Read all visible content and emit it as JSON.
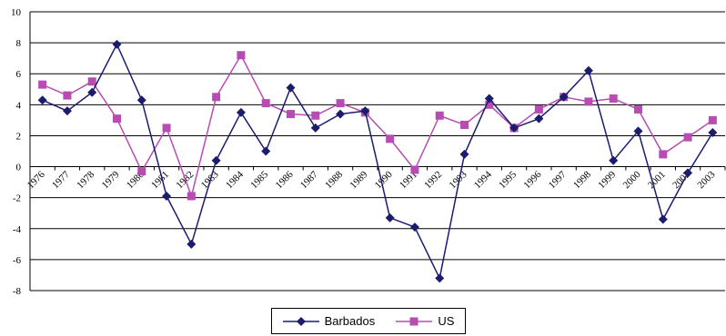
{
  "chart_data": {
    "type": "line",
    "title": "",
    "xlabel": "",
    "ylabel": "",
    "ylim": [
      -8,
      10
    ],
    "yticks": [
      10,
      8,
      6,
      4,
      2,
      0,
      -2,
      -4,
      -6,
      -8
    ],
    "grid": true,
    "legend_position": "bottom",
    "categories": [
      "1976",
      "1977",
      "1978",
      "1979",
      "1980",
      "1981",
      "1982",
      "1983",
      "1984",
      "1985",
      "1986",
      "1987",
      "1988",
      "1989",
      "1990",
      "1991",
      "1992",
      "1993",
      "1994",
      "1995",
      "1996",
      "1997",
      "1998",
      "1999",
      "2000",
      "2001",
      "2002",
      "2003"
    ],
    "series": [
      {
        "name": "Barbados",
        "color": "#1c1c6e",
        "marker": "diamond",
        "values": [
          4.3,
          3.6,
          4.8,
          7.9,
          4.3,
          -1.9,
          -5.0,
          0.4,
          3.5,
          1.0,
          5.1,
          2.5,
          3.4,
          3.6,
          -3.3,
          -3.9,
          -7.2,
          0.8,
          4.4,
          2.5,
          3.1,
          4.5,
          6.2,
          0.4,
          2.3,
          -3.4,
          -0.4,
          2.2
        ]
      },
      {
        "name": "US",
        "color": "#b74db3",
        "marker": "square",
        "values": [
          5.3,
          4.6,
          5.5,
          3.1,
          -0.3,
          2.5,
          -1.9,
          4.5,
          7.2,
          4.1,
          3.4,
          3.3,
          4.1,
          3.5,
          1.8,
          -0.2,
          3.3,
          2.7,
          4.0,
          2.5,
          3.7,
          4.5,
          4.2,
          4.4,
          3.7,
          0.8,
          1.9,
          3.0
        ]
      }
    ]
  }
}
